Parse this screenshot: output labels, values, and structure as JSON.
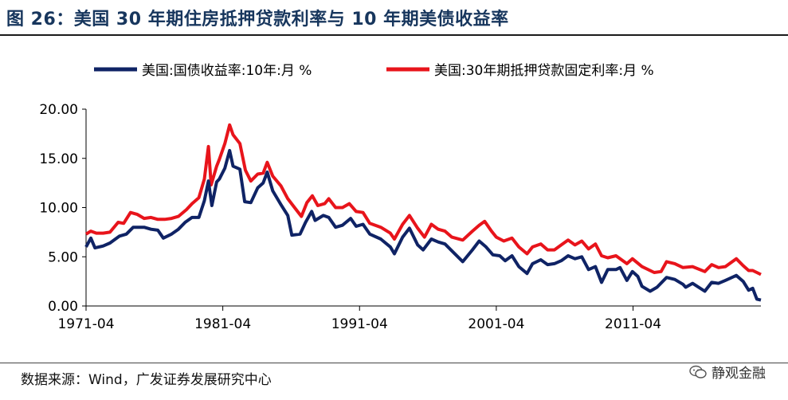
{
  "header": {
    "title": "图 26：美国 30 年期住房抵押贷款利率与 10 年期美债收益率"
  },
  "footer": {
    "source": "数据来源：Wind，广发证券发展研究中心",
    "watermark": "静观金融"
  },
  "colors": {
    "title": "#17365d",
    "treasury": "#0f2365",
    "mortgage": "#e8141b"
  },
  "chart_data": {
    "type": "line",
    "title": "",
    "xlabel": "",
    "ylabel": "",
    "ylim": [
      0,
      20
    ],
    "yticks": [
      0,
      5,
      10,
      15,
      20
    ],
    "ytick_labels": [
      "0.00",
      "5.00",
      "10.00",
      "15.00",
      "20.00"
    ],
    "xlim": [
      1971.25,
      2020.6
    ],
    "xticks": [
      1971.25,
      1981.25,
      1991.25,
      2001.25,
      2011.25
    ],
    "xtick_labels": [
      "1971-04",
      "1981-04",
      "1991-04",
      "2001-04",
      "2011-04"
    ],
    "legend_position": "top",
    "series": [
      {
        "name": "美国:国债收益率:10年:月 %",
        "color": "#0f2365",
        "points": [
          [
            1971.25,
            6.0
          ],
          [
            1971.6,
            6.9
          ],
          [
            1971.9,
            5.9
          ],
          [
            1972.5,
            6.1
          ],
          [
            1973.0,
            6.4
          ],
          [
            1973.7,
            7.1
          ],
          [
            1974.2,
            7.3
          ],
          [
            1974.7,
            8.0
          ],
          [
            1975.5,
            8.0
          ],
          [
            1976.0,
            7.8
          ],
          [
            1976.5,
            7.7
          ],
          [
            1976.9,
            6.9
          ],
          [
            1977.5,
            7.3
          ],
          [
            1978.0,
            7.8
          ],
          [
            1978.5,
            8.5
          ],
          [
            1979.0,
            9.0
          ],
          [
            1979.5,
            9.0
          ],
          [
            1979.9,
            10.7
          ],
          [
            1980.2,
            12.7
          ],
          [
            1980.45,
            10.2
          ],
          [
            1980.8,
            12.6
          ],
          [
            1981.0,
            12.9
          ],
          [
            1981.4,
            14.0
          ],
          [
            1981.75,
            15.8
          ],
          [
            1982.0,
            14.2
          ],
          [
            1982.5,
            13.9
          ],
          [
            1982.85,
            10.6
          ],
          [
            1983.3,
            10.5
          ],
          [
            1983.8,
            12.0
          ],
          [
            1984.2,
            12.5
          ],
          [
            1984.5,
            13.6
          ],
          [
            1984.9,
            11.7
          ],
          [
            1985.5,
            10.3
          ],
          [
            1986.0,
            9.2
          ],
          [
            1986.3,
            7.2
          ],
          [
            1986.9,
            7.3
          ],
          [
            1987.3,
            8.5
          ],
          [
            1987.75,
            9.6
          ],
          [
            1988.0,
            8.7
          ],
          [
            1988.6,
            9.2
          ],
          [
            1989.0,
            9.0
          ],
          [
            1989.5,
            8.0
          ],
          [
            1990.0,
            8.2
          ],
          [
            1990.6,
            8.9
          ],
          [
            1991.0,
            8.1
          ],
          [
            1991.5,
            8.3
          ],
          [
            1992.0,
            7.3
          ],
          [
            1992.8,
            6.8
          ],
          [
            1993.5,
            6.0
          ],
          [
            1993.8,
            5.3
          ],
          [
            1994.4,
            7.0
          ],
          [
            1994.9,
            7.9
          ],
          [
            1995.5,
            6.2
          ],
          [
            1995.9,
            5.7
          ],
          [
            1996.5,
            6.8
          ],
          [
            1997.0,
            6.5
          ],
          [
            1997.5,
            6.3
          ],
          [
            1998.0,
            5.6
          ],
          [
            1998.8,
            4.5
          ],
          [
            1999.5,
            5.7
          ],
          [
            2000.0,
            6.6
          ],
          [
            2000.5,
            6.0
          ],
          [
            2001.0,
            5.2
          ],
          [
            2001.5,
            5.1
          ],
          [
            2001.9,
            4.6
          ],
          [
            2002.4,
            5.1
          ],
          [
            2002.9,
            4.0
          ],
          [
            2003.5,
            3.3
          ],
          [
            2003.9,
            4.3
          ],
          [
            2004.5,
            4.7
          ],
          [
            2005.0,
            4.2
          ],
          [
            2005.5,
            4.3
          ],
          [
            2006.0,
            4.6
          ],
          [
            2006.5,
            5.1
          ],
          [
            2007.0,
            4.8
          ],
          [
            2007.5,
            5.0
          ],
          [
            2008.0,
            3.7
          ],
          [
            2008.5,
            4.0
          ],
          [
            2008.95,
            2.4
          ],
          [
            2009.4,
            3.7
          ],
          [
            2010.0,
            3.7
          ],
          [
            2010.3,
            3.9
          ],
          [
            2010.8,
            2.6
          ],
          [
            2011.2,
            3.5
          ],
          [
            2011.6,
            3.0
          ],
          [
            2011.9,
            2.0
          ],
          [
            2012.5,
            1.5
          ],
          [
            2013.0,
            1.9
          ],
          [
            2013.7,
            2.9
          ],
          [
            2014.3,
            2.7
          ],
          [
            2014.9,
            2.2
          ],
          [
            2015.1,
            1.9
          ],
          [
            2015.6,
            2.3
          ],
          [
            2016.5,
            1.5
          ],
          [
            2017.0,
            2.4
          ],
          [
            2017.5,
            2.3
          ],
          [
            2018.0,
            2.6
          ],
          [
            2018.8,
            3.1
          ],
          [
            2019.3,
            2.5
          ],
          [
            2019.7,
            1.6
          ],
          [
            2020.0,
            1.8
          ],
          [
            2020.3,
            0.7
          ],
          [
            2020.6,
            0.6
          ]
        ]
      },
      {
        "name": "美国:30年期抵押贷款固定利率:月 %",
        "color": "#e8141b",
        "points": [
          [
            1971.25,
            7.3
          ],
          [
            1971.6,
            7.6
          ],
          [
            1972.0,
            7.4
          ],
          [
            1972.5,
            7.4
          ],
          [
            1973.0,
            7.5
          ],
          [
            1973.6,
            8.5
          ],
          [
            1974.0,
            8.4
          ],
          [
            1974.5,
            9.5
          ],
          [
            1975.0,
            9.3
          ],
          [
            1975.5,
            8.9
          ],
          [
            1976.0,
            9.0
          ],
          [
            1976.5,
            8.8
          ],
          [
            1977.0,
            8.8
          ],
          [
            1977.5,
            8.9
          ],
          [
            1978.0,
            9.1
          ],
          [
            1978.6,
            9.8
          ],
          [
            1979.0,
            10.4
          ],
          [
            1979.5,
            11.0
          ],
          [
            1979.9,
            12.9
          ],
          [
            1980.2,
            16.2
          ],
          [
            1980.4,
            12.3
          ],
          [
            1980.8,
            14.2
          ],
          [
            1981.0,
            14.9
          ],
          [
            1981.4,
            16.5
          ],
          [
            1981.75,
            18.4
          ],
          [
            1982.0,
            17.4
          ],
          [
            1982.5,
            16.5
          ],
          [
            1982.9,
            13.8
          ],
          [
            1983.3,
            12.7
          ],
          [
            1983.8,
            13.4
          ],
          [
            1984.2,
            13.5
          ],
          [
            1984.5,
            14.6
          ],
          [
            1984.9,
            13.2
          ],
          [
            1985.5,
            12.2
          ],
          [
            1986.0,
            10.9
          ],
          [
            1986.5,
            10.0
          ],
          [
            1987.0,
            9.1
          ],
          [
            1987.4,
            10.5
          ],
          [
            1987.8,
            11.2
          ],
          [
            1988.2,
            10.2
          ],
          [
            1988.7,
            10.4
          ],
          [
            1989.0,
            10.9
          ],
          [
            1989.5,
            10.0
          ],
          [
            1990.0,
            10.0
          ],
          [
            1990.5,
            10.4
          ],
          [
            1991.0,
            9.6
          ],
          [
            1991.5,
            9.5
          ],
          [
            1992.0,
            8.4
          ],
          [
            1992.8,
            8.0
          ],
          [
            1993.5,
            7.4
          ],
          [
            1993.8,
            6.8
          ],
          [
            1994.4,
            8.3
          ],
          [
            1994.9,
            9.2
          ],
          [
            1995.5,
            7.9
          ],
          [
            1996.0,
            7.0
          ],
          [
            1996.5,
            8.3
          ],
          [
            1997.0,
            7.8
          ],
          [
            1997.5,
            7.6
          ],
          [
            1998.0,
            7.0
          ],
          [
            1998.8,
            6.7
          ],
          [
            1999.5,
            7.6
          ],
          [
            2000.0,
            8.2
          ],
          [
            2000.4,
            8.6
          ],
          [
            2000.9,
            7.6
          ],
          [
            2001.25,
            7.0
          ],
          [
            2001.8,
            6.6
          ],
          [
            2002.4,
            6.9
          ],
          [
            2002.9,
            6.0
          ],
          [
            2003.5,
            5.3
          ],
          [
            2003.9,
            6.0
          ],
          [
            2004.5,
            6.3
          ],
          [
            2005.0,
            5.7
          ],
          [
            2005.5,
            5.7
          ],
          [
            2006.0,
            6.2
          ],
          [
            2006.5,
            6.7
          ],
          [
            2007.0,
            6.2
          ],
          [
            2007.5,
            6.6
          ],
          [
            2008.0,
            5.8
          ],
          [
            2008.5,
            6.3
          ],
          [
            2008.95,
            5.1
          ],
          [
            2009.4,
            4.9
          ],
          [
            2010.0,
            5.1
          ],
          [
            2010.8,
            4.3
          ],
          [
            2011.2,
            4.8
          ],
          [
            2011.9,
            4.0
          ],
          [
            2012.8,
            3.4
          ],
          [
            2013.3,
            3.5
          ],
          [
            2013.7,
            4.5
          ],
          [
            2014.3,
            4.3
          ],
          [
            2014.9,
            3.9
          ],
          [
            2015.6,
            4.0
          ],
          [
            2016.5,
            3.5
          ],
          [
            2017.0,
            4.2
          ],
          [
            2017.5,
            3.9
          ],
          [
            2018.0,
            4.0
          ],
          [
            2018.8,
            4.8
          ],
          [
            2019.3,
            4.1
          ],
          [
            2019.7,
            3.6
          ],
          [
            2020.0,
            3.6
          ],
          [
            2020.3,
            3.4
          ],
          [
            2020.6,
            3.2
          ]
        ]
      }
    ]
  }
}
